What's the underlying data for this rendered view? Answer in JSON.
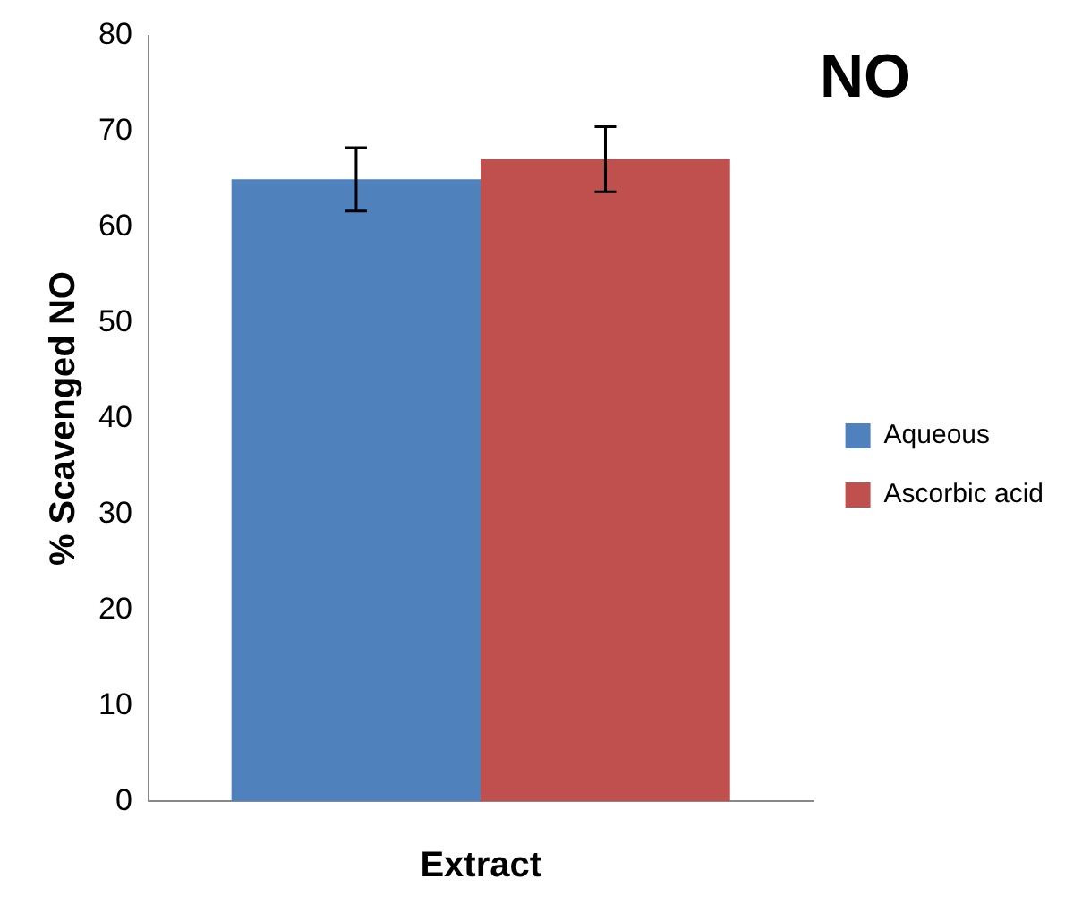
{
  "chart_data": {
    "type": "bar",
    "title": "NO",
    "xlabel": "Extract",
    "ylabel": "% Scavenged NO",
    "categories": [
      null
    ],
    "series": [
      {
        "name": "Aqueous",
        "color": "#4f81bd",
        "values": [
          65.0
        ],
        "errors": [
          3.3
        ]
      },
      {
        "name": "Ascorbic acid",
        "color": "#c0504d",
        "values": [
          67.1
        ],
        "errors": [
          3.4
        ]
      }
    ],
    "ylim": [
      0,
      80
    ],
    "yticks": [
      0,
      10,
      20,
      30,
      40,
      50,
      60,
      70,
      80
    ],
    "grid": false,
    "legend": "right"
  }
}
